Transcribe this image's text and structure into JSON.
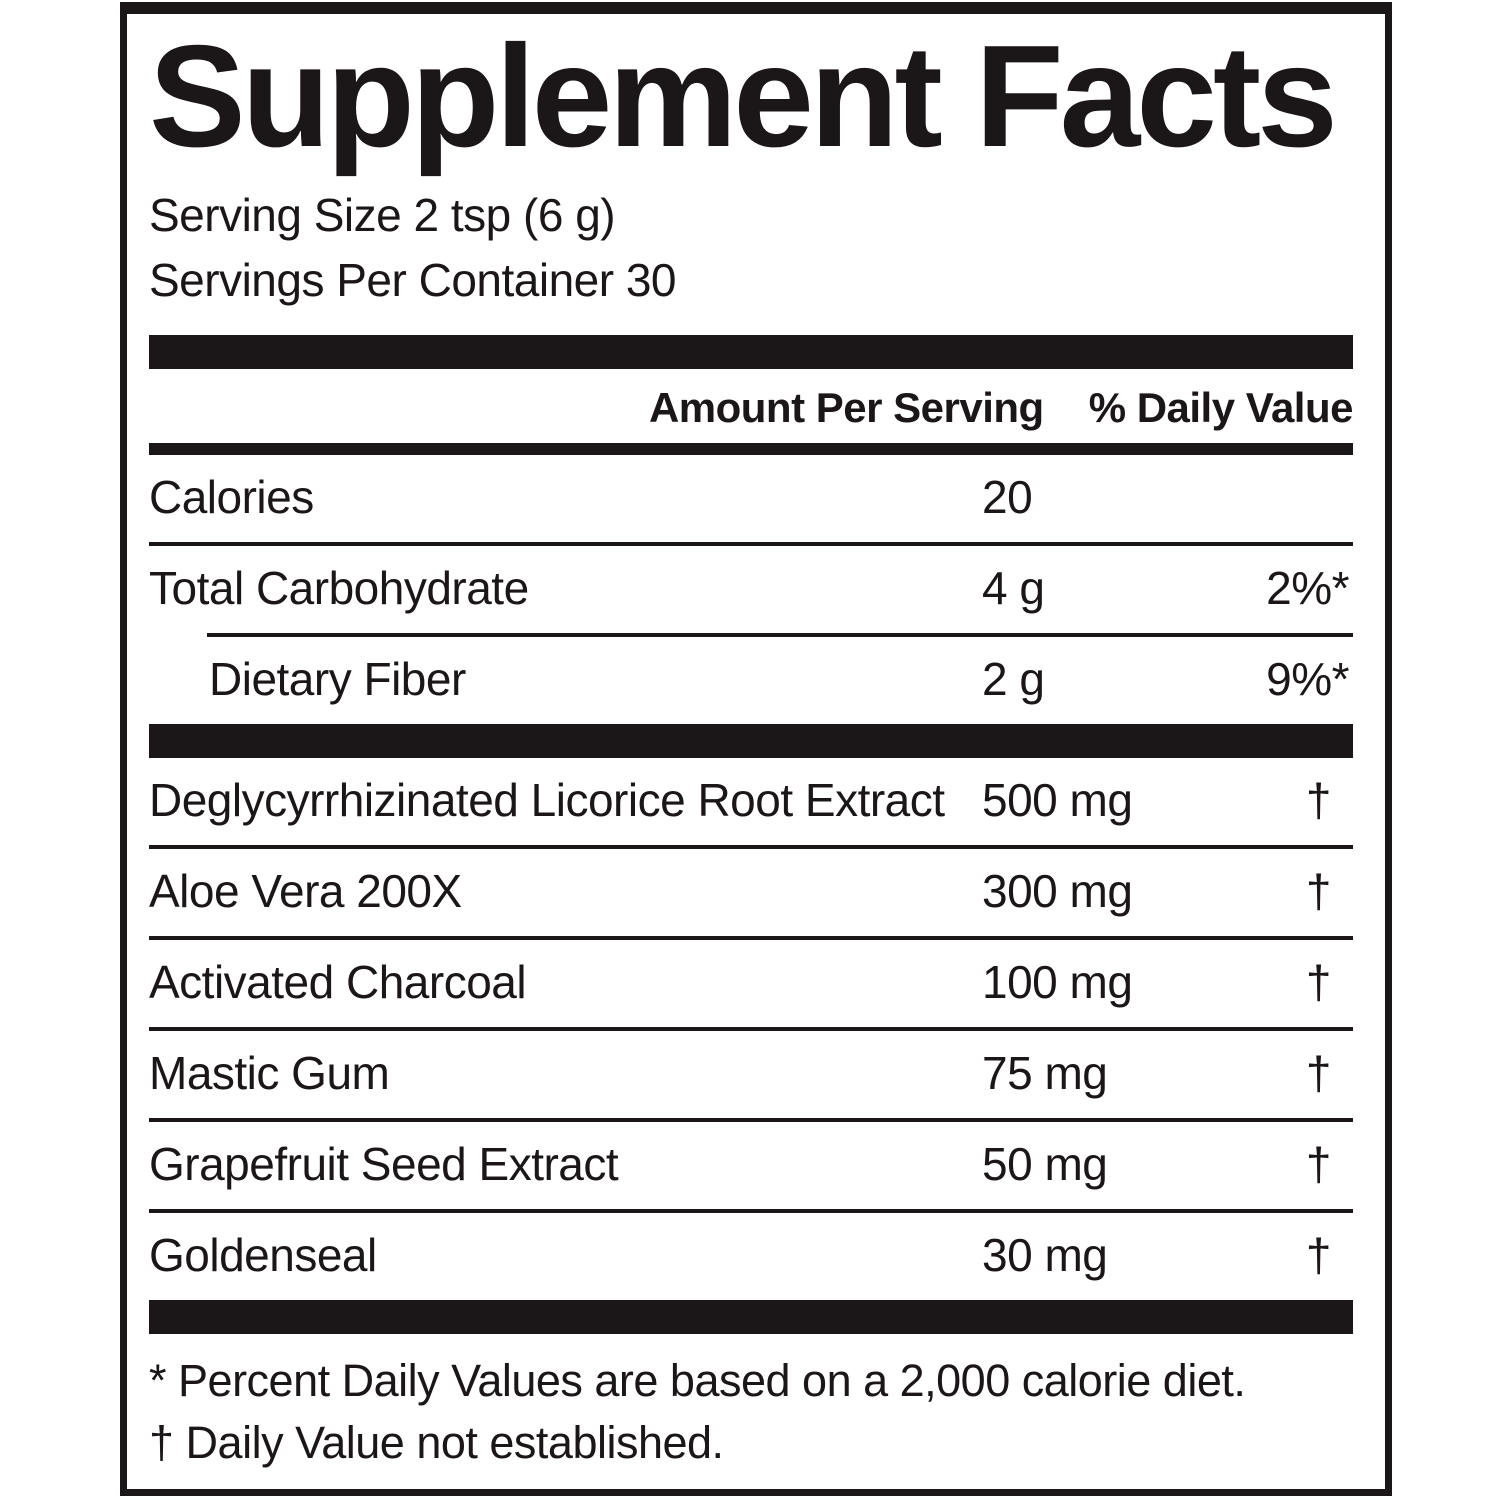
{
  "label": {
    "title": "Supplement Facts",
    "serving_size": "Serving Size 2 tsp (6 g)",
    "servings_per_container": "Servings Per Container 30",
    "columns": {
      "amount": "Amount Per Serving",
      "daily_value": "% Daily Value"
    },
    "rows": [
      {
        "name": "Calories",
        "amount": "20",
        "dv": "",
        "indent": false,
        "divider_after": "line"
      },
      {
        "name": "Total Carbohydrate",
        "amount": "4 g",
        "dv": "2%*",
        "indent": false,
        "divider_after": "line-indent"
      },
      {
        "name": "Dietary Fiber",
        "amount": "2 g",
        "dv": "9%*",
        "indent": true,
        "divider_after": "bar"
      },
      {
        "name": "Deglycyrrhizinated Licorice Root Extract",
        "amount": "500 mg",
        "dv": "†",
        "indent": false,
        "divider_after": "line"
      },
      {
        "name": "Aloe Vera 200X",
        "amount": "300 mg",
        "dv": "†",
        "indent": false,
        "divider_after": "line"
      },
      {
        "name": "Activated Charcoal",
        "amount": "100 mg",
        "dv": "†",
        "indent": false,
        "divider_after": "line"
      },
      {
        "name": "Mastic Gum",
        "amount": "75 mg",
        "dv": "†",
        "indent": false,
        "divider_after": "line"
      },
      {
        "name": "Grapefruit Seed Extract",
        "amount": "50 mg",
        "dv": "†",
        "indent": false,
        "divider_after": "line"
      },
      {
        "name": "Goldenseal",
        "amount": "30 mg",
        "dv": "†",
        "indent": false,
        "divider_after": "bar"
      }
    ],
    "footnotes": [
      {
        "marker": "*",
        "text": "Percent Daily Values are based on a 2,000 calorie diet."
      },
      {
        "marker": "†",
        "text": "Daily Value not established."
      }
    ],
    "colors": {
      "ink": "#1b1718",
      "background": "#ffffff"
    }
  }
}
